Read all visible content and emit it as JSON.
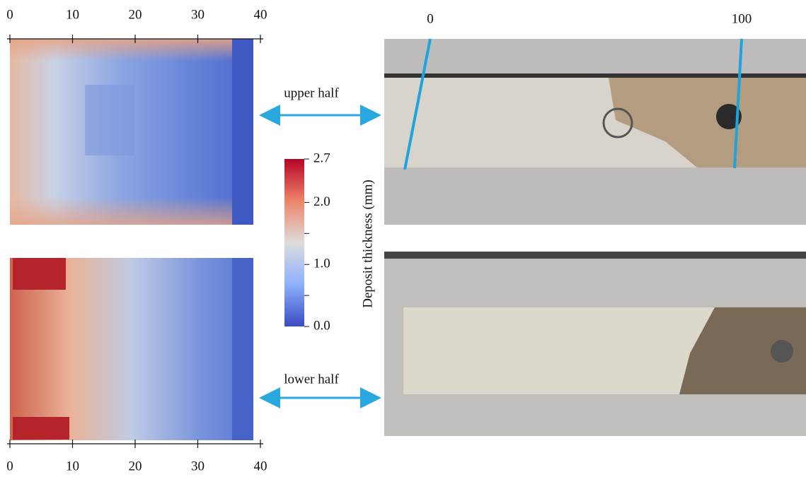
{
  "maps": {
    "x_axis": {
      "lim": [
        0,
        40
      ],
      "ticks": [
        0,
        10,
        20,
        30,
        40
      ]
    },
    "upper_label": "upper half",
    "lower_label": "lower half"
  },
  "colorbar": {
    "label": "Deposit thickness (mm)",
    "lim": [
      0,
      2.7
    ],
    "ticks": [
      {
        "value": 0,
        "label": "0.0"
      },
      {
        "value": 1,
        "label": "1.0"
      },
      {
        "value": 2,
        "label": "2.0"
      },
      2.7
    ],
    "minor_ticks": [
      0.5,
      1.5
    ]
  },
  "photo_scale": {
    "ticks": [
      0,
      100
    ]
  }
}
